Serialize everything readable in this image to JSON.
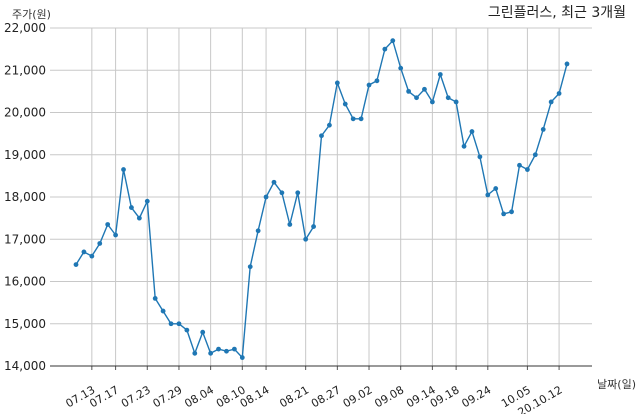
{
  "chart_data": {
    "type": "line",
    "title": "그린플러스, 최근 3개월",
    "ylabel": "주가(원)",
    "xlabel": "날짜(일)",
    "ylim": [
      14000,
      22000
    ],
    "yticks": [
      14000,
      15000,
      16000,
      17000,
      18000,
      19000,
      20000,
      21000,
      22000
    ],
    "ytick_labels": [
      "14,000",
      "15,000",
      "16,000",
      "17,000",
      "18,000",
      "19,000",
      "20,000",
      "21,000",
      "22,000"
    ],
    "xtick_labels": [
      "07.13",
      "07.17",
      "07.23",
      "07.29",
      "08.04",
      "08.10",
      "08.14",
      "08.21",
      "08.27",
      "09.02",
      "09.08",
      "09.14",
      "09.18",
      "09.24",
      "10.05",
      "20.10.12"
    ],
    "xtick_positions": [
      2,
      5,
      9,
      13,
      17,
      21,
      24,
      29,
      33,
      37,
      41,
      45,
      48,
      52,
      57,
      61
    ],
    "grid": true,
    "series": [
      {
        "color": "#1f77b4",
        "values": [
          16400,
          16700,
          16600,
          16900,
          17350,
          17100,
          18650,
          17750,
          17500,
          17900,
          15600,
          15300,
          15000,
          15000,
          14850,
          14300,
          14800,
          14300,
          14400,
          14350,
          14400,
          14200,
          16350,
          17200,
          18000,
          18350,
          18100,
          17350,
          18100,
          17000,
          17300,
          19450,
          19700,
          20700,
          20200,
          19850,
          19850,
          20650,
          20750,
          21500,
          21700,
          21050,
          20500,
          20350,
          20550,
          20250,
          20900,
          20350,
          20250,
          19200,
          19550,
          18950,
          18050,
          18200,
          17600,
          17650,
          18750,
          18650,
          19000,
          19600,
          20250,
          20450,
          21150
        ]
      }
    ]
  }
}
